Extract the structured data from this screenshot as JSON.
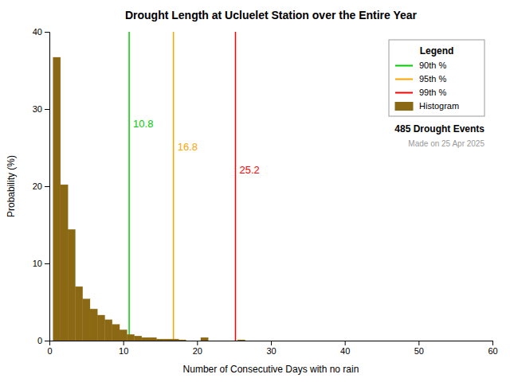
{
  "chart_data": {
    "type": "histogram",
    "title": "Drought Length at Ucluelet Station over the Entire Year",
    "x_label": "Number of Consecutive Days with no rain",
    "y_label": "Probability (%)",
    "xlim": [
      0,
      60
    ],
    "ylim": [
      0,
      40
    ],
    "xticks": [
      0,
      10,
      20,
      30,
      40,
      50,
      60
    ],
    "yticks": [
      0,
      10,
      20,
      30,
      40
    ],
    "grid": false,
    "legend": "upper right",
    "legend_title": "Legend",
    "bins": [
      0.5,
      1.5,
      2.5,
      3.5,
      4.5,
      5.5,
      6.5,
      7.5,
      8.5,
      9.5,
      10.5,
      11.5,
      12.5,
      13.5,
      14.5,
      15.5,
      16.5,
      17.5,
      18.5,
      19.5,
      20.5,
      21.5,
      22.5,
      23.5,
      24.5,
      25.5,
      26.5,
      27.5,
      28.5,
      29.5,
      30.5
    ],
    "series": [
      {
        "name": "90th %",
        "type": "vline",
        "color": "#00CC00",
        "values": [
          10.8
        ],
        "data_labels": true
      },
      {
        "name": "95th %",
        "type": "vline",
        "color": "#FFA500",
        "values": [
          16.8
        ],
        "data_labels": true
      },
      {
        "name": "99th %",
        "type": "vline",
        "color": "#FF0000",
        "values": [
          25.2
        ],
        "data_labels": true
      },
      {
        "name": "Histogram",
        "type": "bar",
        "color": "#8B6914",
        "values": [
          36.7,
          20.2,
          14.4,
          7.0,
          5.4,
          4.1,
          3.3,
          2.7,
          2.1,
          1.4,
          0.8,
          0.6,
          0.4,
          0.4,
          0.2,
          0.2,
          0.2,
          0.1,
          0.0,
          0.0,
          0.4,
          0.0,
          0.0,
          0.0,
          0.0,
          0.1,
          0.0,
          0.0,
          0.0,
          0.0
        ]
      }
    ],
    "annotations": [
      "485 Drought Events",
      "Made on 25 Apr 2025"
    ]
  }
}
